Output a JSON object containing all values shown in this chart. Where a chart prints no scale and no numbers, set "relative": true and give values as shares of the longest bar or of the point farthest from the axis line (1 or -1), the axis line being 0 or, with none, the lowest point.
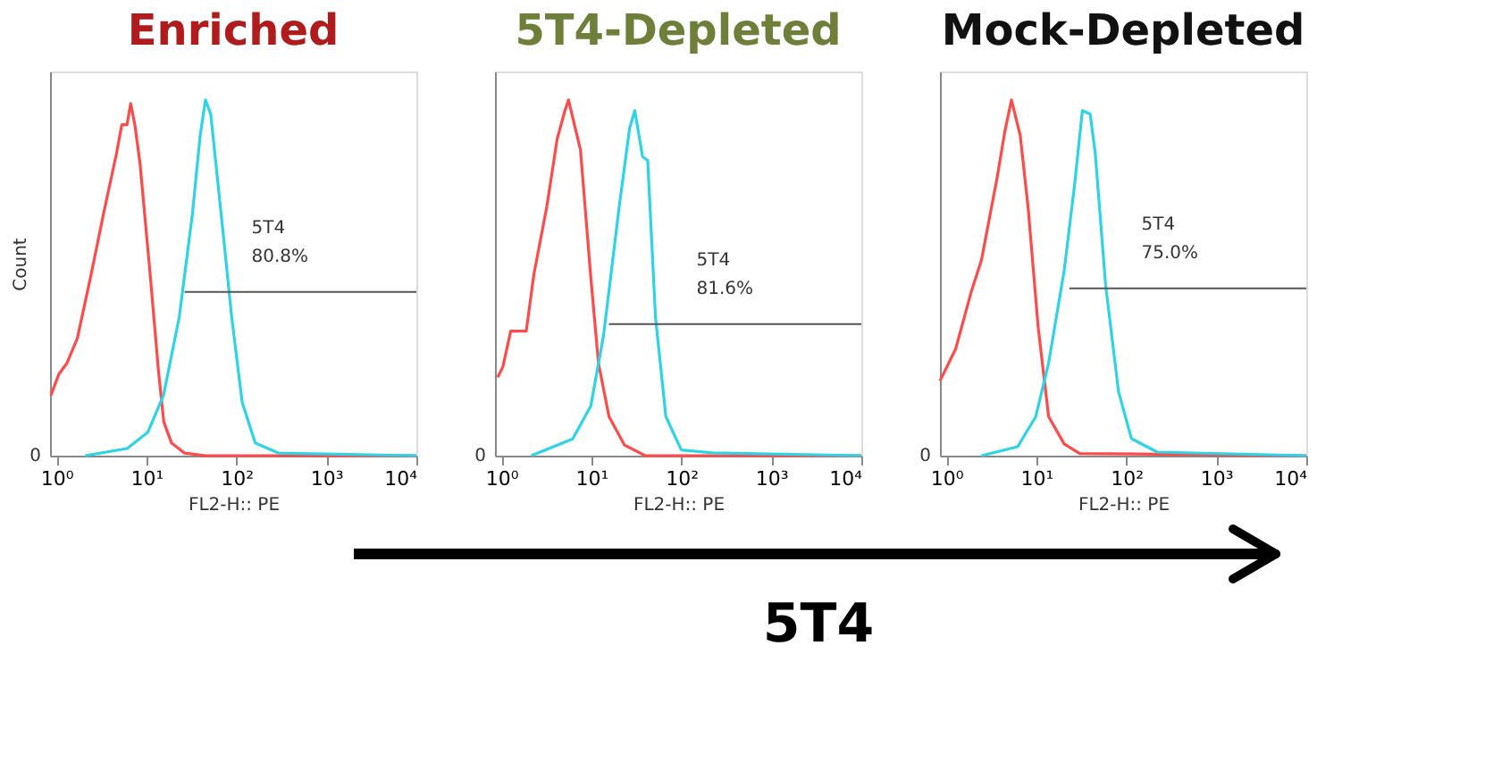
{
  "chart_data": [
    {
      "type": "line",
      "title": "Enriched",
      "xlabel": "FL2-H:: PE",
      "ylabel": "Count",
      "relative": true,
      "log": "x",
      "grid": false,
      "marker": "none",
      "line_style": "solid",
      "xlim": [
        0.85,
        10000
      ],
      "xticks": [
        {
          "value": 1,
          "label": "10⁰"
        },
        {
          "value": 10,
          "label": "10¹"
        },
        {
          "value": 100,
          "label": "10²"
        },
        {
          "value": 1000,
          "label": "10³"
        },
        {
          "value": 10000,
          "label": "10⁴"
        }
      ],
      "series": [
        {
          "color": "#ff4a4a",
          "x": [
            0.87,
            1.07,
            1.31,
            1.71,
            2.39,
            3.34,
            4.66,
            5.33,
            6.09,
            6.69,
            7.45,
            8.51,
            11.1,
            13.6,
            15.6,
            19.0,
            26.6,
            45.4,
            226,
            10000
          ],
          "values": [
            0.17,
            0.23,
            0.26,
            0.33,
            0.5,
            0.68,
            0.85,
            0.93,
            0.93,
            0.99,
            0.93,
            0.82,
            0.5,
            0.24,
            0.095,
            0.036,
            0.007,
            0,
            0,
            0
          ]
        },
        {
          "color": "#2ed3e6",
          "x": [
            2.09,
            6.1,
            10.4,
            15.5,
            23.2,
            32.5,
            39.6,
            45.4,
            51.9,
            67.7,
            88.7,
            116,
            162,
            296,
            10000
          ],
          "values": [
            0,
            0.02,
            0.066,
            0.17,
            0.39,
            0.68,
            0.9,
            1.0,
            0.96,
            0.68,
            0.39,
            0.15,
            0.036,
            0.007,
            0
          ]
        },
        {
          "color": "#555555",
          "x": [
            26.6,
            10000
          ],
          "values": [
            0.46,
            0.46
          ]
        }
      ],
      "annotations": [
        "5T4",
        "80.8%",
        "0"
      ]
    },
    {
      "type": "line",
      "title": "5T4-Depleted",
      "xlabel": "FL2-H:: PE",
      "relative": true,
      "log": "x",
      "grid": false,
      "marker": "none",
      "line_style": "solid",
      "xlim": [
        0.85,
        10000
      ],
      "xticks": [
        {
          "value": 1,
          "label": "10⁰"
        },
        {
          "value": 10,
          "label": "10¹"
        },
        {
          "value": 100,
          "label": "10²"
        },
        {
          "value": 1000,
          "label": "10³"
        },
        {
          "value": 10000,
          "label": "10⁴"
        }
      ],
      "series": [
        {
          "color": "#ff4a4a",
          "x": [
            0.91,
            1.04,
            1.27,
            1.89,
            2.3,
            3.2,
            4.17,
            5.09,
            5.58,
            6.63,
            7.57,
            9.87,
            12.0,
            15.7,
            23.3,
            39.7,
            10000
          ],
          "values": [
            0.22,
            0.25,
            0.35,
            0.35,
            0.51,
            0.7,
            0.89,
            0.97,
            1.0,
            0.92,
            0.86,
            0.5,
            0.26,
            0.11,
            0.03,
            0,
            0
          ]
        },
        {
          "color": "#2ed3e6",
          "x": [
            2.15,
            6.21,
            9.87,
            13.7,
            20.4,
            26.6,
            30.4,
            37.1,
            42.3,
            51.6,
            67.3,
            100,
            221,
            10000
          ],
          "values": [
            0,
            0.047,
            0.14,
            0.34,
            0.7,
            0.92,
            0.97,
            0.84,
            0.83,
            0.39,
            0.11,
            0.016,
            0.008,
            0
          ]
        },
        {
          "color": "#555555",
          "x": [
            15.7,
            10000
          ],
          "values": [
            0.37,
            0.37
          ]
        }
      ],
      "annotations": [
        "5T4",
        "81.6%",
        "0"
      ]
    },
    {
      "type": "line",
      "title": "Mock-Depleted",
      "xlabel": "FL2-H:: PE",
      "relative": true,
      "log": "x",
      "grid": false,
      "marker": "none",
      "line_style": "solid",
      "xlim": [
        0.85,
        10000
      ],
      "xticks": [
        {
          "value": 1,
          "label": "10⁰"
        },
        {
          "value": 10,
          "label": "10¹"
        },
        {
          "value": 100,
          "label": "10²"
        },
        {
          "value": 1000,
          "label": "10³"
        },
        {
          "value": 10000,
          "label": "10⁴"
        }
      ],
      "series": [
        {
          "color": "#ff4a4a",
          "x": [
            0.85,
            1.27,
            1.89,
            2.46,
            3.66,
            4.46,
            5.3,
            6.63,
            8.09,
            10.5,
            13.7,
            20.4,
            30.4,
            10000
          ],
          "values": [
            0.21,
            0.3,
            0.46,
            0.55,
            0.78,
            0.91,
            1.0,
            0.9,
            0.7,
            0.36,
            0.11,
            0.033,
            0.006,
            0
          ]
        },
        {
          "color": "#2ed3e6",
          "x": [
            2.46,
            6.21,
            9.87,
            13.7,
            20.4,
            26.6,
            32.5,
            39.7,
            45.2,
            58.9,
            82,
            114,
            221,
            10000
          ],
          "values": [
            0,
            0.025,
            0.11,
            0.26,
            0.52,
            0.76,
            0.97,
            0.96,
            0.85,
            0.48,
            0.18,
            0.048,
            0.01,
            0
          ]
        },
        {
          "color": "#555555",
          "x": [
            23.3,
            10000
          ],
          "values": [
            0.47,
            0.47
          ]
        }
      ],
      "annotations": [
        "5T4",
        "75.0%",
        "0"
      ]
    },
    {
      "type": "other",
      "annotations": [
        "5T4"
      ]
    }
  ]
}
